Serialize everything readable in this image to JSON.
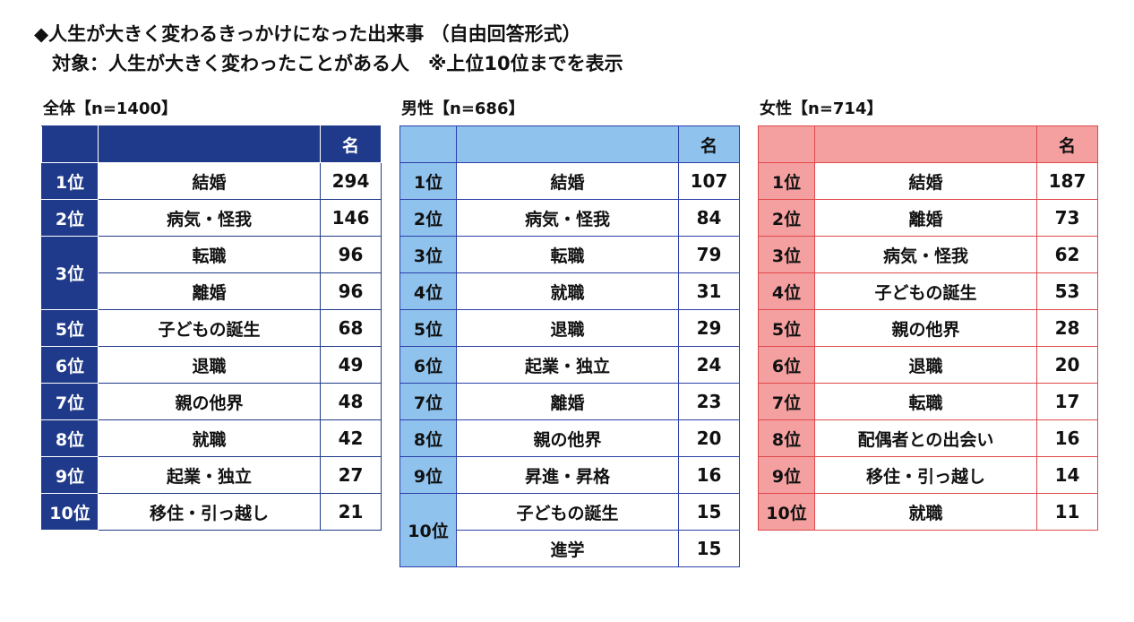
{
  "title": "◆人生が大きく変わるきっかけになった出来事 （自由回答形式）",
  "subtitle": "対象：人生が大きく変わったことがある人　※上位10位までを表示",
  "colors": {
    "all": "#1f3a8a",
    "male": "#8fc3ee",
    "female": "#f5a0a0",
    "female_border": "#e0484a"
  },
  "chart_data": [
    {
      "type": "table",
      "title": "全体【n=1400】",
      "header": {
        "rank": "",
        "item": "",
        "count": "名"
      },
      "rows": [
        {
          "rank": "1位",
          "item": "結婚",
          "count": 294
        },
        {
          "rank": "2位",
          "item": "病気・怪我",
          "count": 146
        },
        {
          "rank": "3位",
          "item": "転職",
          "count": 96
        },
        {
          "rank": "",
          "item": "離婚",
          "count": 96
        },
        {
          "rank": "5位",
          "item": "子どもの誕生",
          "count": 68
        },
        {
          "rank": "6位",
          "item": "退職",
          "count": 49
        },
        {
          "rank": "7位",
          "item": "親の他界",
          "count": 48
        },
        {
          "rank": "8位",
          "item": "就職",
          "count": 42
        },
        {
          "rank": "9位",
          "item": "起業・独立",
          "count": 27
        },
        {
          "rank": "10位",
          "item": "移住・引っ越し",
          "count": 21
        }
      ]
    },
    {
      "type": "table",
      "title": "男性【n=686】",
      "header": {
        "rank": "",
        "item": "",
        "count": "名"
      },
      "rows": [
        {
          "rank": "1位",
          "item": "結婚",
          "count": 107
        },
        {
          "rank": "2位",
          "item": "病気・怪我",
          "count": 84
        },
        {
          "rank": "3位",
          "item": "転職",
          "count": 79
        },
        {
          "rank": "4位",
          "item": "就職",
          "count": 31
        },
        {
          "rank": "5位",
          "item": "退職",
          "count": 29
        },
        {
          "rank": "6位",
          "item": "起業・独立",
          "count": 24
        },
        {
          "rank": "7位",
          "item": "離婚",
          "count": 23
        },
        {
          "rank": "8位",
          "item": "親の他界",
          "count": 20
        },
        {
          "rank": "9位",
          "item": "昇進・昇格",
          "count": 16
        },
        {
          "rank": "10位",
          "item": "子どもの誕生",
          "count": 15
        },
        {
          "rank": "",
          "item": "進学",
          "count": 15
        }
      ]
    },
    {
      "type": "table",
      "title": "女性【n=714】",
      "header": {
        "rank": "",
        "item": "",
        "count": "名"
      },
      "rows": [
        {
          "rank": "1位",
          "item": "結婚",
          "count": 187
        },
        {
          "rank": "2位",
          "item": "離婚",
          "count": 73
        },
        {
          "rank": "3位",
          "item": "病気・怪我",
          "count": 62
        },
        {
          "rank": "4位",
          "item": "子どもの誕生",
          "count": 53
        },
        {
          "rank": "5位",
          "item": "親の他界",
          "count": 28
        },
        {
          "rank": "6位",
          "item": "退職",
          "count": 20
        },
        {
          "rank": "7位",
          "item": "転職",
          "count": 17
        },
        {
          "rank": "8位",
          "item": "配偶者との出会い",
          "count": 16
        },
        {
          "rank": "9位",
          "item": "移住・引っ越し",
          "count": 14
        },
        {
          "rank": "10位",
          "item": "就職",
          "count": 11
        }
      ]
    }
  ]
}
